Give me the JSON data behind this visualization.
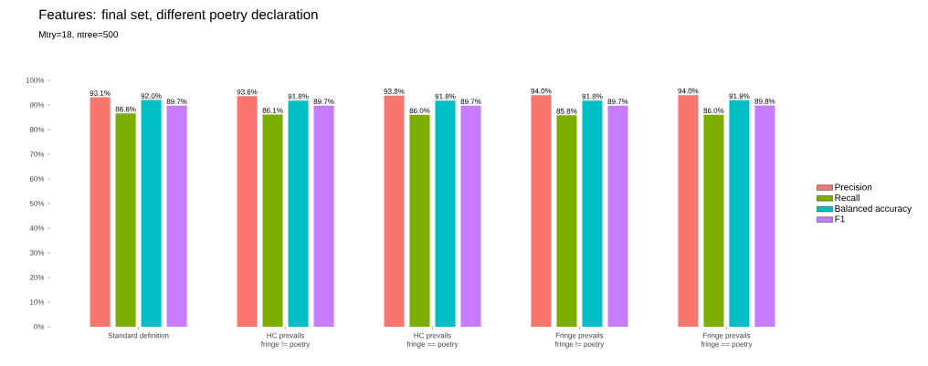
{
  "chart_data": {
    "type": "bar",
    "title": "Features: final set, different poetry declaration",
    "subtitle": "Mtry=18, ntree=500",
    "categories": [
      "Standard definition",
      "HC prevails\nfringe != poetry",
      "HC prevails\nfringe == poetry",
      "Fringe prevails\nfringe != poetry",
      "Fringe prevails\nfringe == poetry"
    ],
    "series": [
      {
        "name": "Precision",
        "color": "#f8766d",
        "values": [
          93.1,
          93.6,
          93.8,
          94.0,
          94.0
        ],
        "value_labels": [
          "93.1%",
          "93.6%",
          "93.8%",
          "94.0%",
          "94.0%"
        ]
      },
      {
        "name": "Recall",
        "color": "#7cae00",
        "values": [
          86.6,
          86.1,
          86.0,
          85.8,
          86.0
        ],
        "value_labels": [
          "86.6%",
          "86.1%",
          "86.0%",
          "85.8%",
          "86.0%"
        ]
      },
      {
        "name": "Balanced accuracy",
        "color": "#00bfc4",
        "values": [
          92.0,
          91.8,
          91.8,
          91.8,
          91.9
        ],
        "value_labels": [
          "92.0%",
          "91.8%",
          "91.8%",
          "91.8%",
          "91.9%"
        ]
      },
      {
        "name": "F1",
        "color": "#c77cff",
        "values": [
          89.7,
          89.7,
          89.7,
          89.7,
          89.8
        ],
        "value_labels": [
          "89.7%",
          "89.7%",
          "89.7%",
          "89.7%",
          "89.8%"
        ]
      }
    ],
    "ylim": [
      0,
      100
    ],
    "yticks": [
      {
        "value": 0,
        "label": "0%"
      },
      {
        "value": 10,
        "label": "10%"
      },
      {
        "value": 20,
        "label": "20%"
      },
      {
        "value": 30,
        "label": "30%"
      },
      {
        "value": 40,
        "label": "40%"
      },
      {
        "value": 50,
        "label": "50%"
      },
      {
        "value": 60,
        "label": "60%"
      },
      {
        "value": 70,
        "label": "70%"
      },
      {
        "value": 80,
        "label": "80%"
      },
      {
        "value": 90,
        "label": "90%"
      },
      {
        "value": 100,
        "label": "100%"
      }
    ],
    "grid": false,
    "legend": "right"
  }
}
